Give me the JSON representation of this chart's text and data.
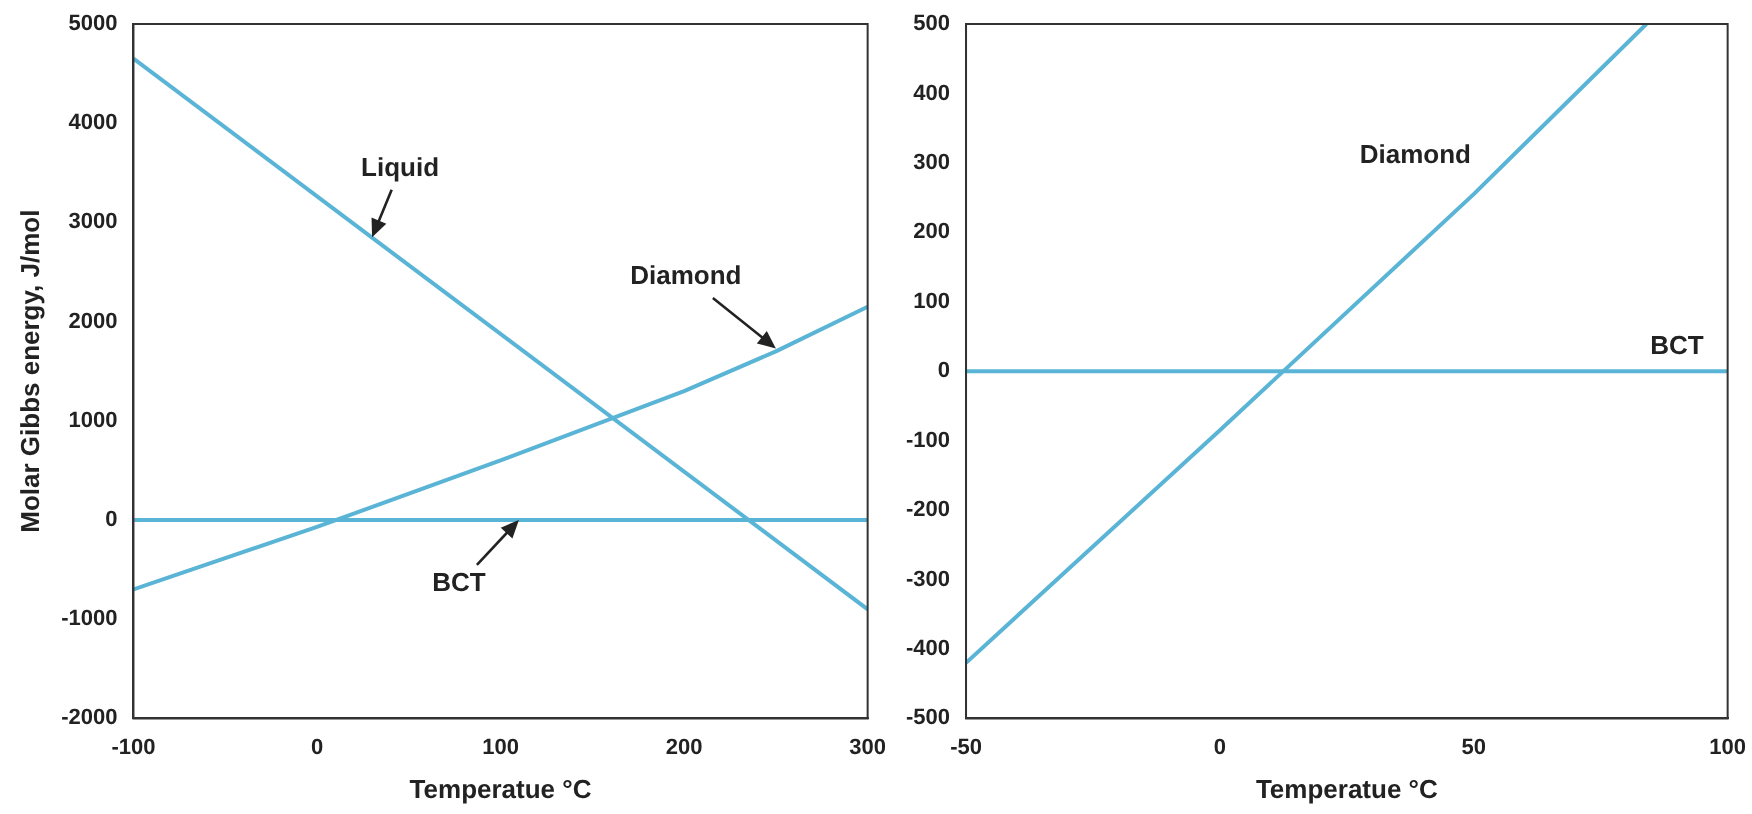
{
  "chart_data": [
    {
      "type": "line",
      "xlabel": "Temperatue °C",
      "ylabel": "Molar Gibbs energy, J/mol",
      "xlim": [
        -100,
        300
      ],
      "ylim": [
        -2000,
        5000
      ],
      "xticks": [
        -100,
        0,
        100,
        200,
        300
      ],
      "yticks": [
        -2000,
        -1000,
        0,
        1000,
        2000,
        3000,
        4000,
        5000
      ],
      "grid": false,
      "series": [
        {
          "color": "#5ab4d6",
          "x": [
            -100,
            300
          ],
          "values": [
            4650,
            -900
          ]
        },
        {
          "color": "#5ab4d6",
          "x": [
            -100,
            0,
            100,
            200,
            250,
            300
          ],
          "values": [
            -700,
            -70,
            600,
            1300,
            1700,
            2150
          ]
        },
        {
          "color": "#5ab4d6",
          "x": [
            -100,
            300
          ],
          "values": [
            0,
            0
          ]
        }
      ],
      "annotations": [
        {
          "text": "Liquid",
          "x": 30,
          "y": 2850
        },
        {
          "text": "Diamond",
          "x": 250,
          "y": 1730
        },
        {
          "text": "BCT",
          "x": 110,
          "y": 0
        }
      ]
    },
    {
      "type": "line",
      "xlabel": "Temperatue °C",
      "xlim": [
        -50,
        100
      ],
      "ylim": [
        -500,
        500
      ],
      "xticks": [
        -50,
        0,
        50,
        100
      ],
      "yticks": [
        -500,
        -400,
        -300,
        -200,
        -100,
        0,
        100,
        200,
        300,
        400,
        500
      ],
      "grid": false,
      "series": [
        {
          "color": "#5ab4d6",
          "x": [
            -50,
            0,
            50,
            84
          ],
          "values": [
            -420,
            -85,
            255,
            500
          ]
        },
        {
          "color": "#5ab4d6",
          "x": [
            -50,
            100
          ],
          "values": [
            0,
            0
          ]
        }
      ],
      "annotations": [
        "Diamond",
        {
          "text": "BCT",
          "x": 90,
          "y": 0
        }
      ]
    }
  ]
}
